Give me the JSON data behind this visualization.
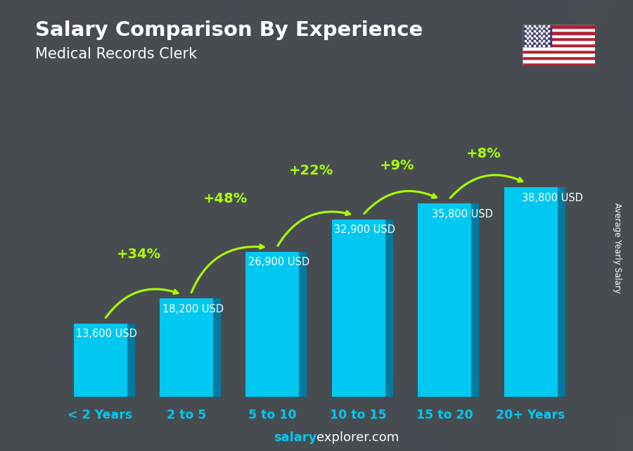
{
  "title": "Salary Comparison By Experience",
  "subtitle": "Medical Records Clerk",
  "categories": [
    "< 2 Years",
    "2 to 5",
    "5 to 10",
    "10 to 15",
    "15 to 20",
    "20+ Years"
  ],
  "values": [
    13600,
    18200,
    26900,
    32900,
    35800,
    38800
  ],
  "salary_labels": [
    "13,600 USD",
    "18,200 USD",
    "26,900 USD",
    "32,900 USD",
    "35,800 USD",
    "38,800 USD"
  ],
  "pct_labels": [
    "+34%",
    "+48%",
    "+22%",
    "+9%",
    "+8%"
  ],
  "bar_color_main": "#00C8F0",
  "bar_color_dark": "#007AA0",
  "bar_color_light": "#80E8FF",
  "bar_width": 0.62,
  "bg_color": "#4a4a5a",
  "title_color": "#FFFFFF",
  "subtitle_color": "#FFFFFF",
  "salary_label_color": "#FFFFFF",
  "pct_color": "#AAFF00",
  "xtick_color": "#00C8F0",
  "footer_salary_color": "#00C8F0",
  "footer_explorer_color": "#FFFFFF",
  "ylabel_text": "Average Yearly Salary",
  "ylabel_color": "#FFFFFF",
  "arrow_color": "#AAFF00",
  "flag_colors": {
    "red": "#B22234",
    "white": "#FFFFFF",
    "blue": "#3C3B6E"
  }
}
